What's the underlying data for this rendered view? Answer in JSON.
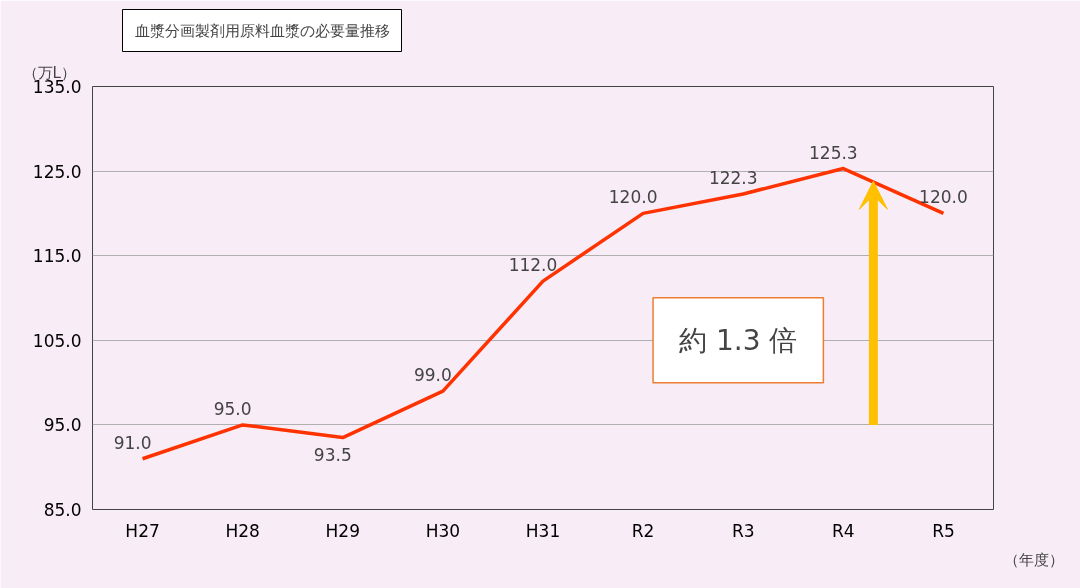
{
  "chart_data": {
    "type": "line",
    "title": "血漿分画製剤用原料血漿の必要量推移",
    "ylabel": "（万L）",
    "xlabel": "（年度）",
    "categories": [
      "H27",
      "H28",
      "H29",
      "H30",
      "H31",
      "R2",
      "R3",
      "R4",
      "R5"
    ],
    "series": [
      {
        "color": "#ff3300",
        "values": [
          91.0,
          95.0,
          93.5,
          99.0,
          112.0,
          120.0,
          122.3,
          125.3,
          120.0
        ]
      }
    ],
    "ylim": [
      85,
      135
    ],
    "yticks": [
      {
        "value": 85,
        "label": "85.0"
      },
      {
        "value": 95,
        "label": "95.0"
      },
      {
        "value": 105,
        "label": "105.0"
      },
      {
        "value": 115,
        "label": "115.0"
      },
      {
        "value": 125,
        "label": "125.0"
      },
      {
        "value": 135,
        "label": "135.0"
      }
    ],
    "value_labels": [
      "91.0",
      "95.0",
      "93.5",
      "99.0",
      "112.0",
      "120.0",
      "122.3",
      "125.3",
      "120.0"
    ],
    "grid": "y",
    "marker": "none",
    "line_style": "solid",
    "annotations": [
      "約 1.3 倍"
    ]
  }
}
